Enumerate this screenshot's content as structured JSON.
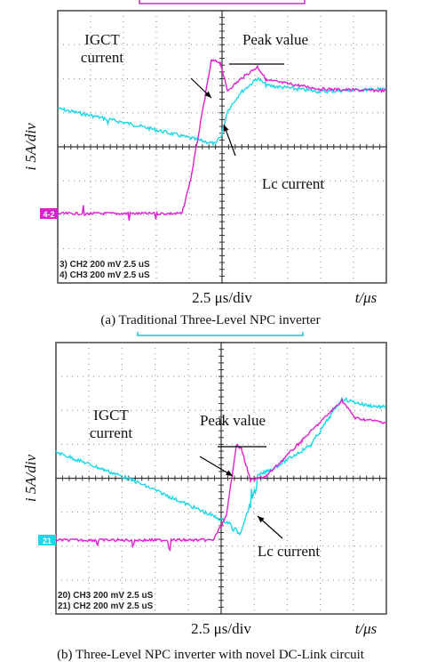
{
  "panels": [
    {
      "y_label": "i 5A/div",
      "igct_label": [
        "IGCT",
        "current"
      ],
      "peak_label": "Peak value",
      "lc_label": "Lc current",
      "marker": "4-2",
      "channel_info": [
        "3) CH2 200 mV   2.5 uS",
        "4) CH3 200 mV   2.5 uS"
      ],
      "x_scale": "2.5 μs/div",
      "x_unit": "t/μs",
      "caption": "(a) Traditional Three-Level NPC inverter"
    },
    {
      "y_label": "i 5A/div",
      "igct_label": [
        "IGCT",
        "current"
      ],
      "peak_label": "Peak value",
      "lc_label": "Lc current",
      "marker": "21",
      "channel_info": [
        "20) CH3  200 mV   2.5 uS",
        "21) CH2  200 mV   2.5 uS"
      ],
      "x_scale": "2.5 μs/div",
      "x_unit": "t/μs",
      "caption": "(b) Three-Level NPC inverter with novel DC-Link circuit"
    }
  ]
}
